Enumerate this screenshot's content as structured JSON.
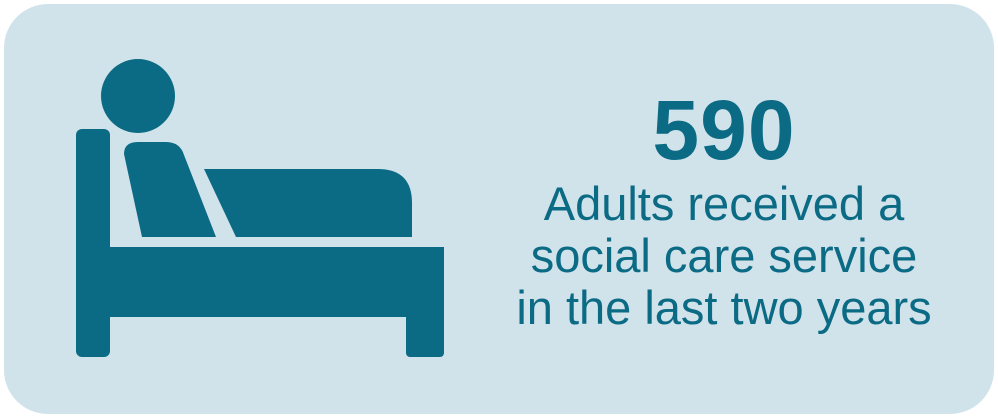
{
  "infographic": {
    "stat_value": "590",
    "caption_lines": [
      "Adults received a",
      "social care service",
      "in the last two years"
    ],
    "icon": "person-in-bed-icon",
    "colors": {
      "card_background": "#d0e2ea",
      "accent": "#0b6a84"
    }
  }
}
